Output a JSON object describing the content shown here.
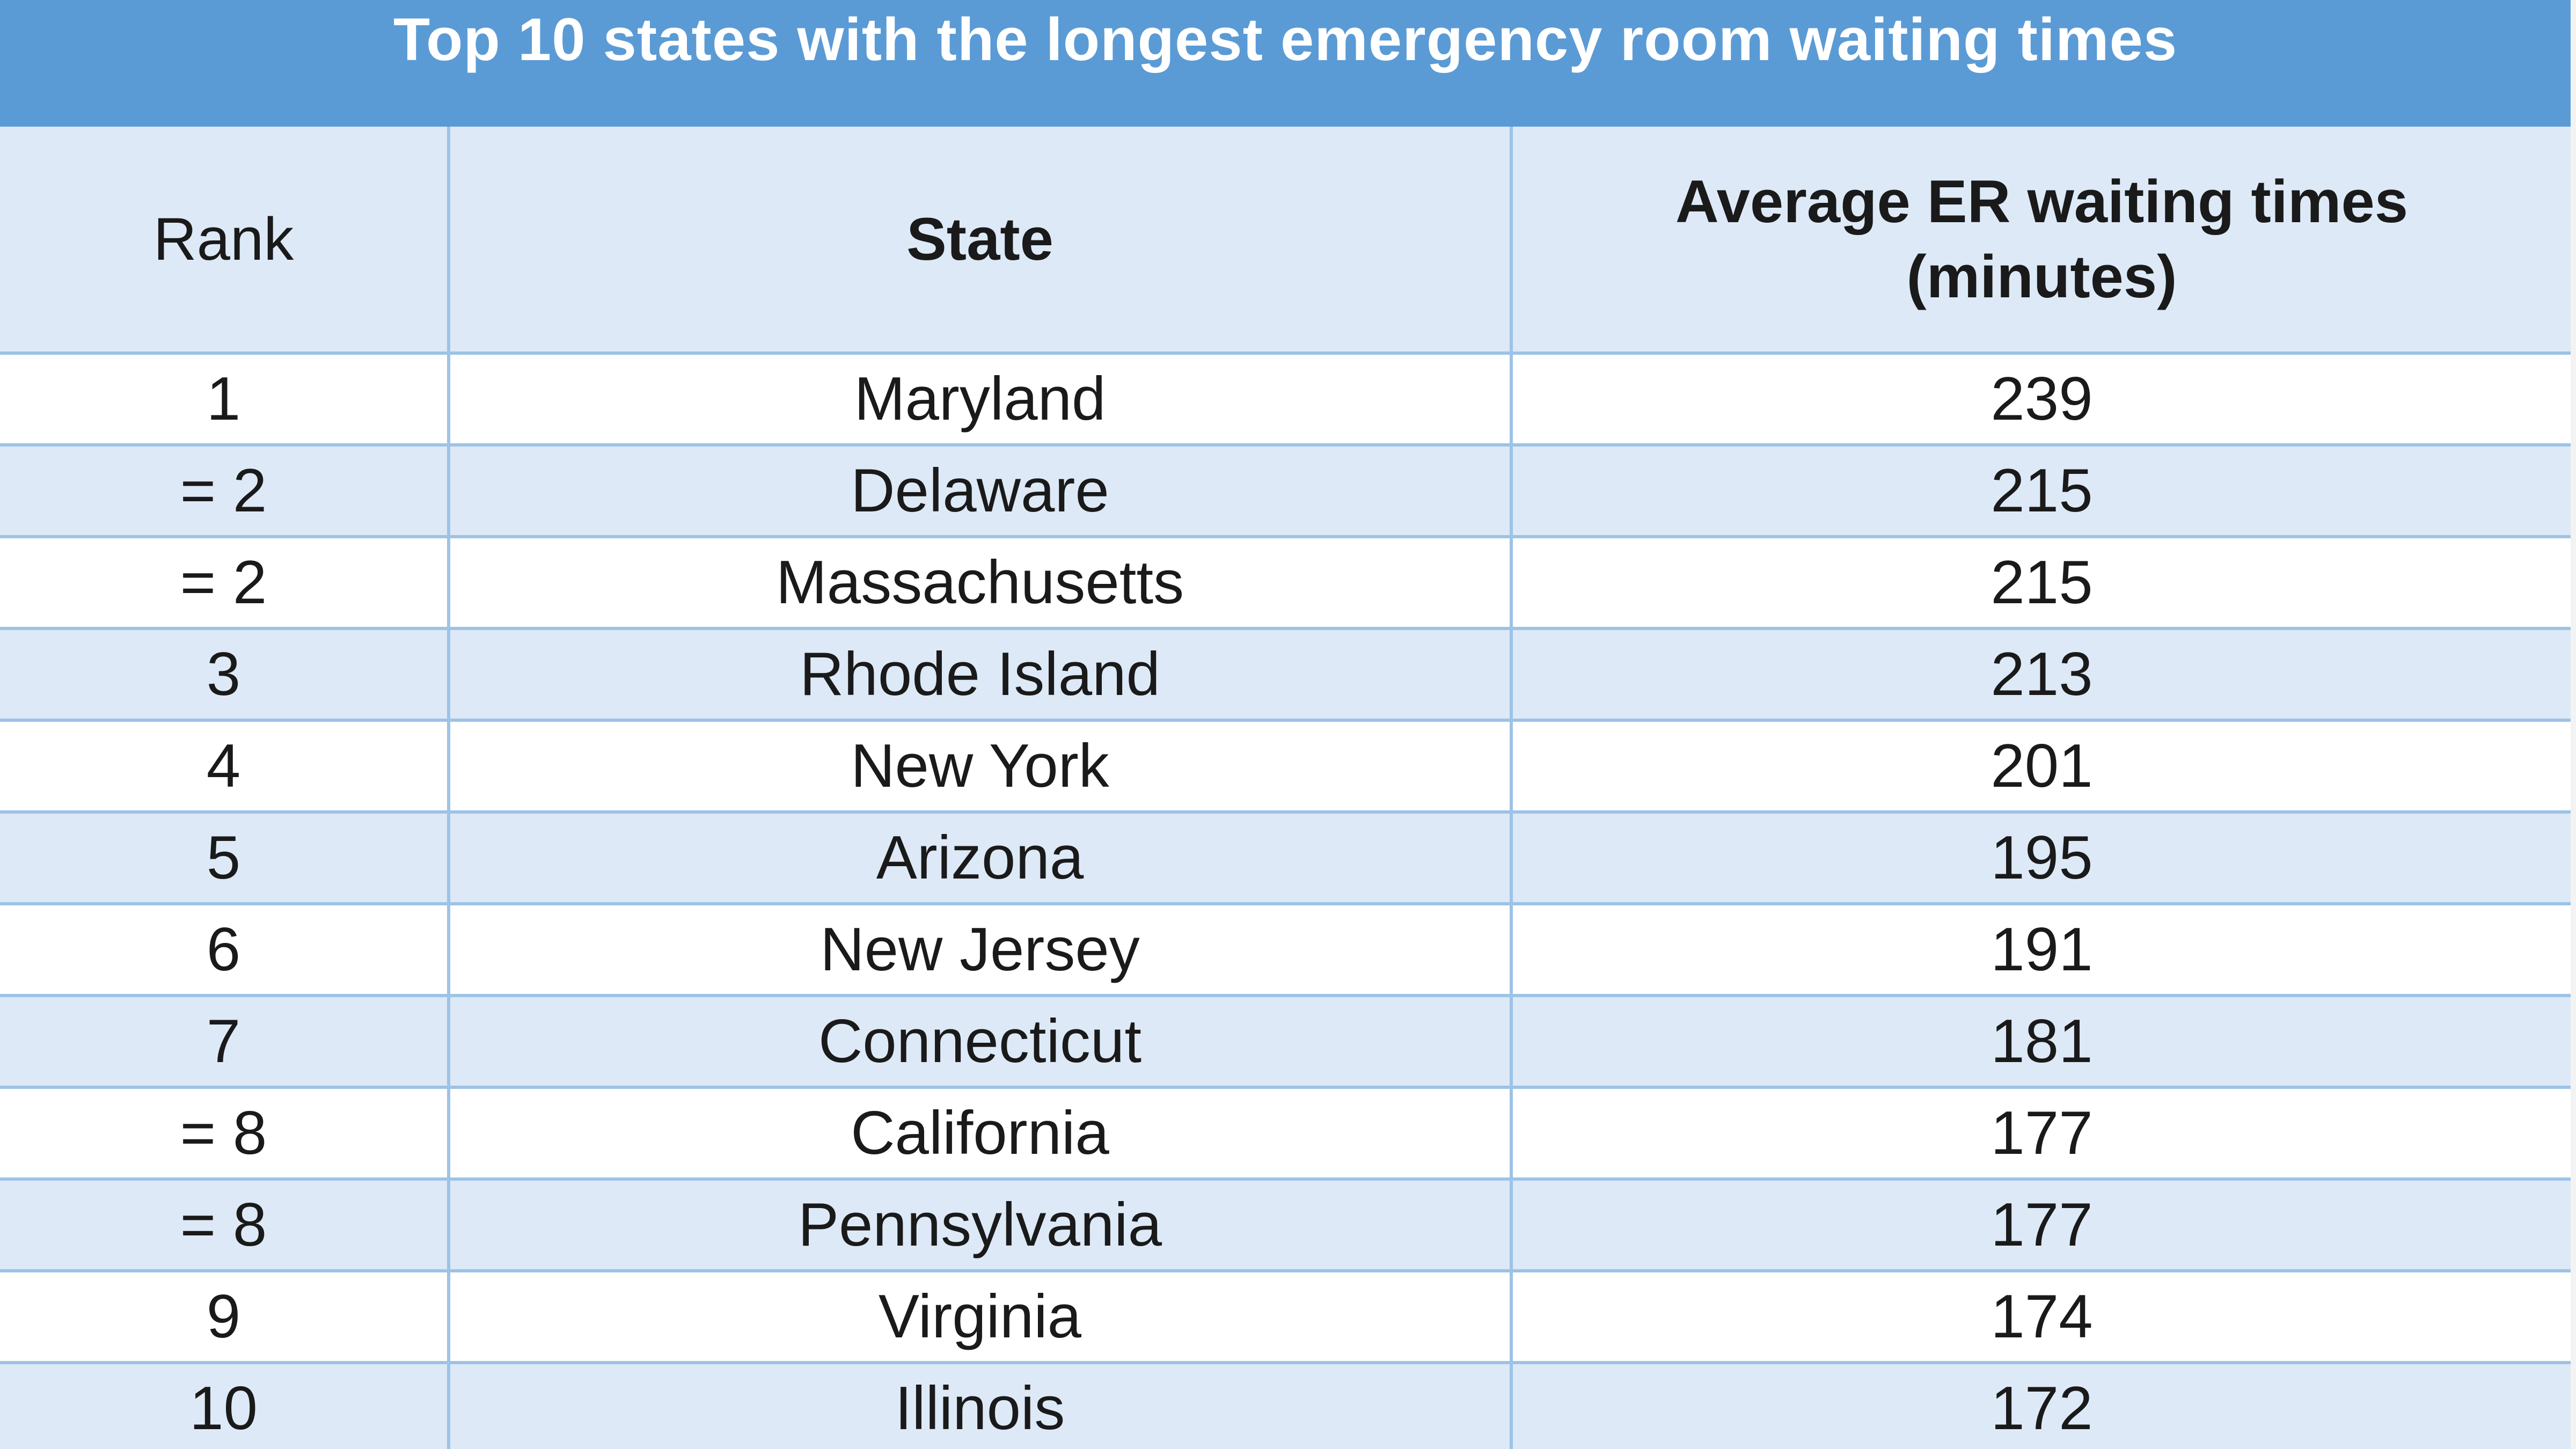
{
  "title": "Top 10 states with the longest emergency room waiting times",
  "headers": {
    "rank": "Rank",
    "state": "State",
    "avg_line1": "Average ER waiting times",
    "avg_line2": "(minutes)"
  },
  "rows": [
    {
      "rank": "1",
      "state": "Maryland",
      "minutes": "239"
    },
    {
      "rank": "= 2",
      "state": "Delaware",
      "minutes": "215"
    },
    {
      "rank": "= 2",
      "state": "Massachusetts",
      "minutes": "215"
    },
    {
      "rank": "3",
      "state": "Rhode Island",
      "minutes": "213"
    },
    {
      "rank": "4",
      "state": "New York",
      "minutes": "201"
    },
    {
      "rank": "5",
      "state": "Arizona",
      "minutes": "195"
    },
    {
      "rank": "6",
      "state": "New Jersey",
      "minutes": "191"
    },
    {
      "rank": "7",
      "state": "Connecticut",
      "minutes": "181"
    },
    {
      "rank": "= 8",
      "state": "California",
      "minutes": "177"
    },
    {
      "rank": "= 8",
      "state": "Pennsylvania",
      "minutes": "177"
    },
    {
      "rank": "9",
      "state": "Virginia",
      "minutes": "174"
    },
    {
      "rank": "10",
      "state": "Illinois",
      "minutes": "172"
    }
  ],
  "colors": {
    "title_bg": "#5b9bd5",
    "header_bg": "#dde9f7",
    "alt_row_bg": "#dde9f7",
    "border": "#9dc3e6"
  },
  "chart_data": {
    "type": "table",
    "title": "Top 10 states with the longest emergency room waiting times",
    "columns": [
      "Rank",
      "State",
      "Average ER waiting times (minutes)"
    ],
    "rows": [
      [
        "1",
        "Maryland",
        239
      ],
      [
        "= 2",
        "Delaware",
        215
      ],
      [
        "= 2",
        "Massachusetts",
        215
      ],
      [
        "3",
        "Rhode Island",
        213
      ],
      [
        "4",
        "New York",
        201
      ],
      [
        "5",
        "Arizona",
        195
      ],
      [
        "6",
        "New Jersey",
        191
      ],
      [
        "7",
        "Connecticut",
        181
      ],
      [
        "= 8",
        "California",
        177
      ],
      [
        "= 8",
        "Pennsylvania",
        177
      ],
      [
        "9",
        "Virginia",
        174
      ],
      [
        "10",
        "Illinois",
        172
      ]
    ]
  }
}
